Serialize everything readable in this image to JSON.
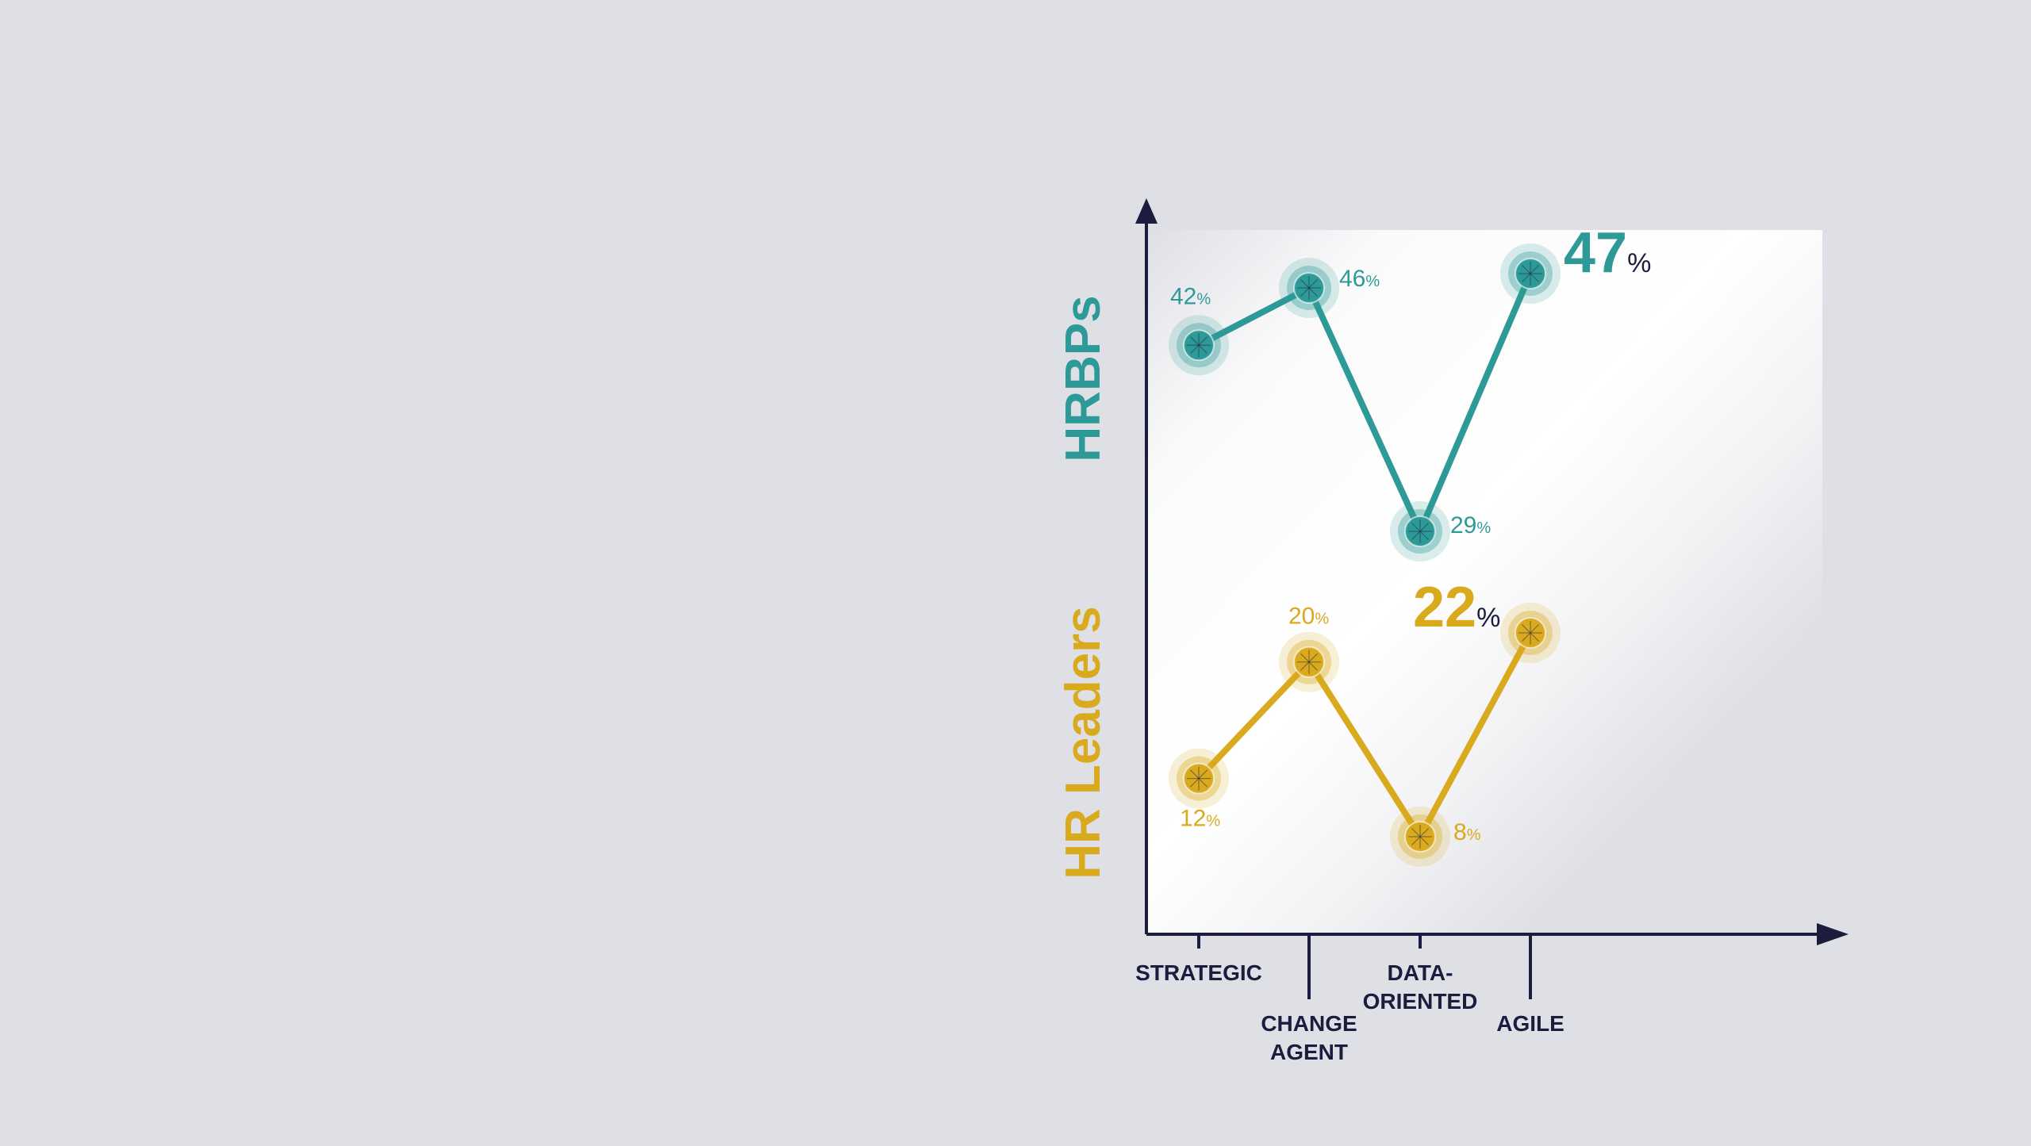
{
  "chart_data": {
    "type": "line",
    "categories": [
      "STRATEGIC",
      "CHANGE AGENT",
      "DATA-ORIENTED",
      "AGILE"
    ],
    "category_lines": [
      [
        "STRATEGIC"
      ],
      [
        "CHANGE",
        "AGENT"
      ],
      [
        "DATA-",
        "ORIENTED"
      ],
      [
        "AGILE"
      ]
    ],
    "series": [
      {
        "name": "HRBPs",
        "values": [
          42,
          46,
          29,
          47
        ],
        "color": "#2e9a98",
        "highlight_index": 3
      },
      {
        "name": "HR Leaders",
        "values": [
          12,
          20,
          8,
          22
        ],
        "color": "#d9aa1e",
        "highlight_index": 3
      }
    ],
    "unit": "%",
    "title": "",
    "xlabel": "",
    "ylabel": "",
    "grid": false,
    "legend": "none"
  },
  "colors": {
    "background": "#dfe0e5",
    "axis": "#1b1c3e",
    "category_text": "#1b1c3e"
  }
}
